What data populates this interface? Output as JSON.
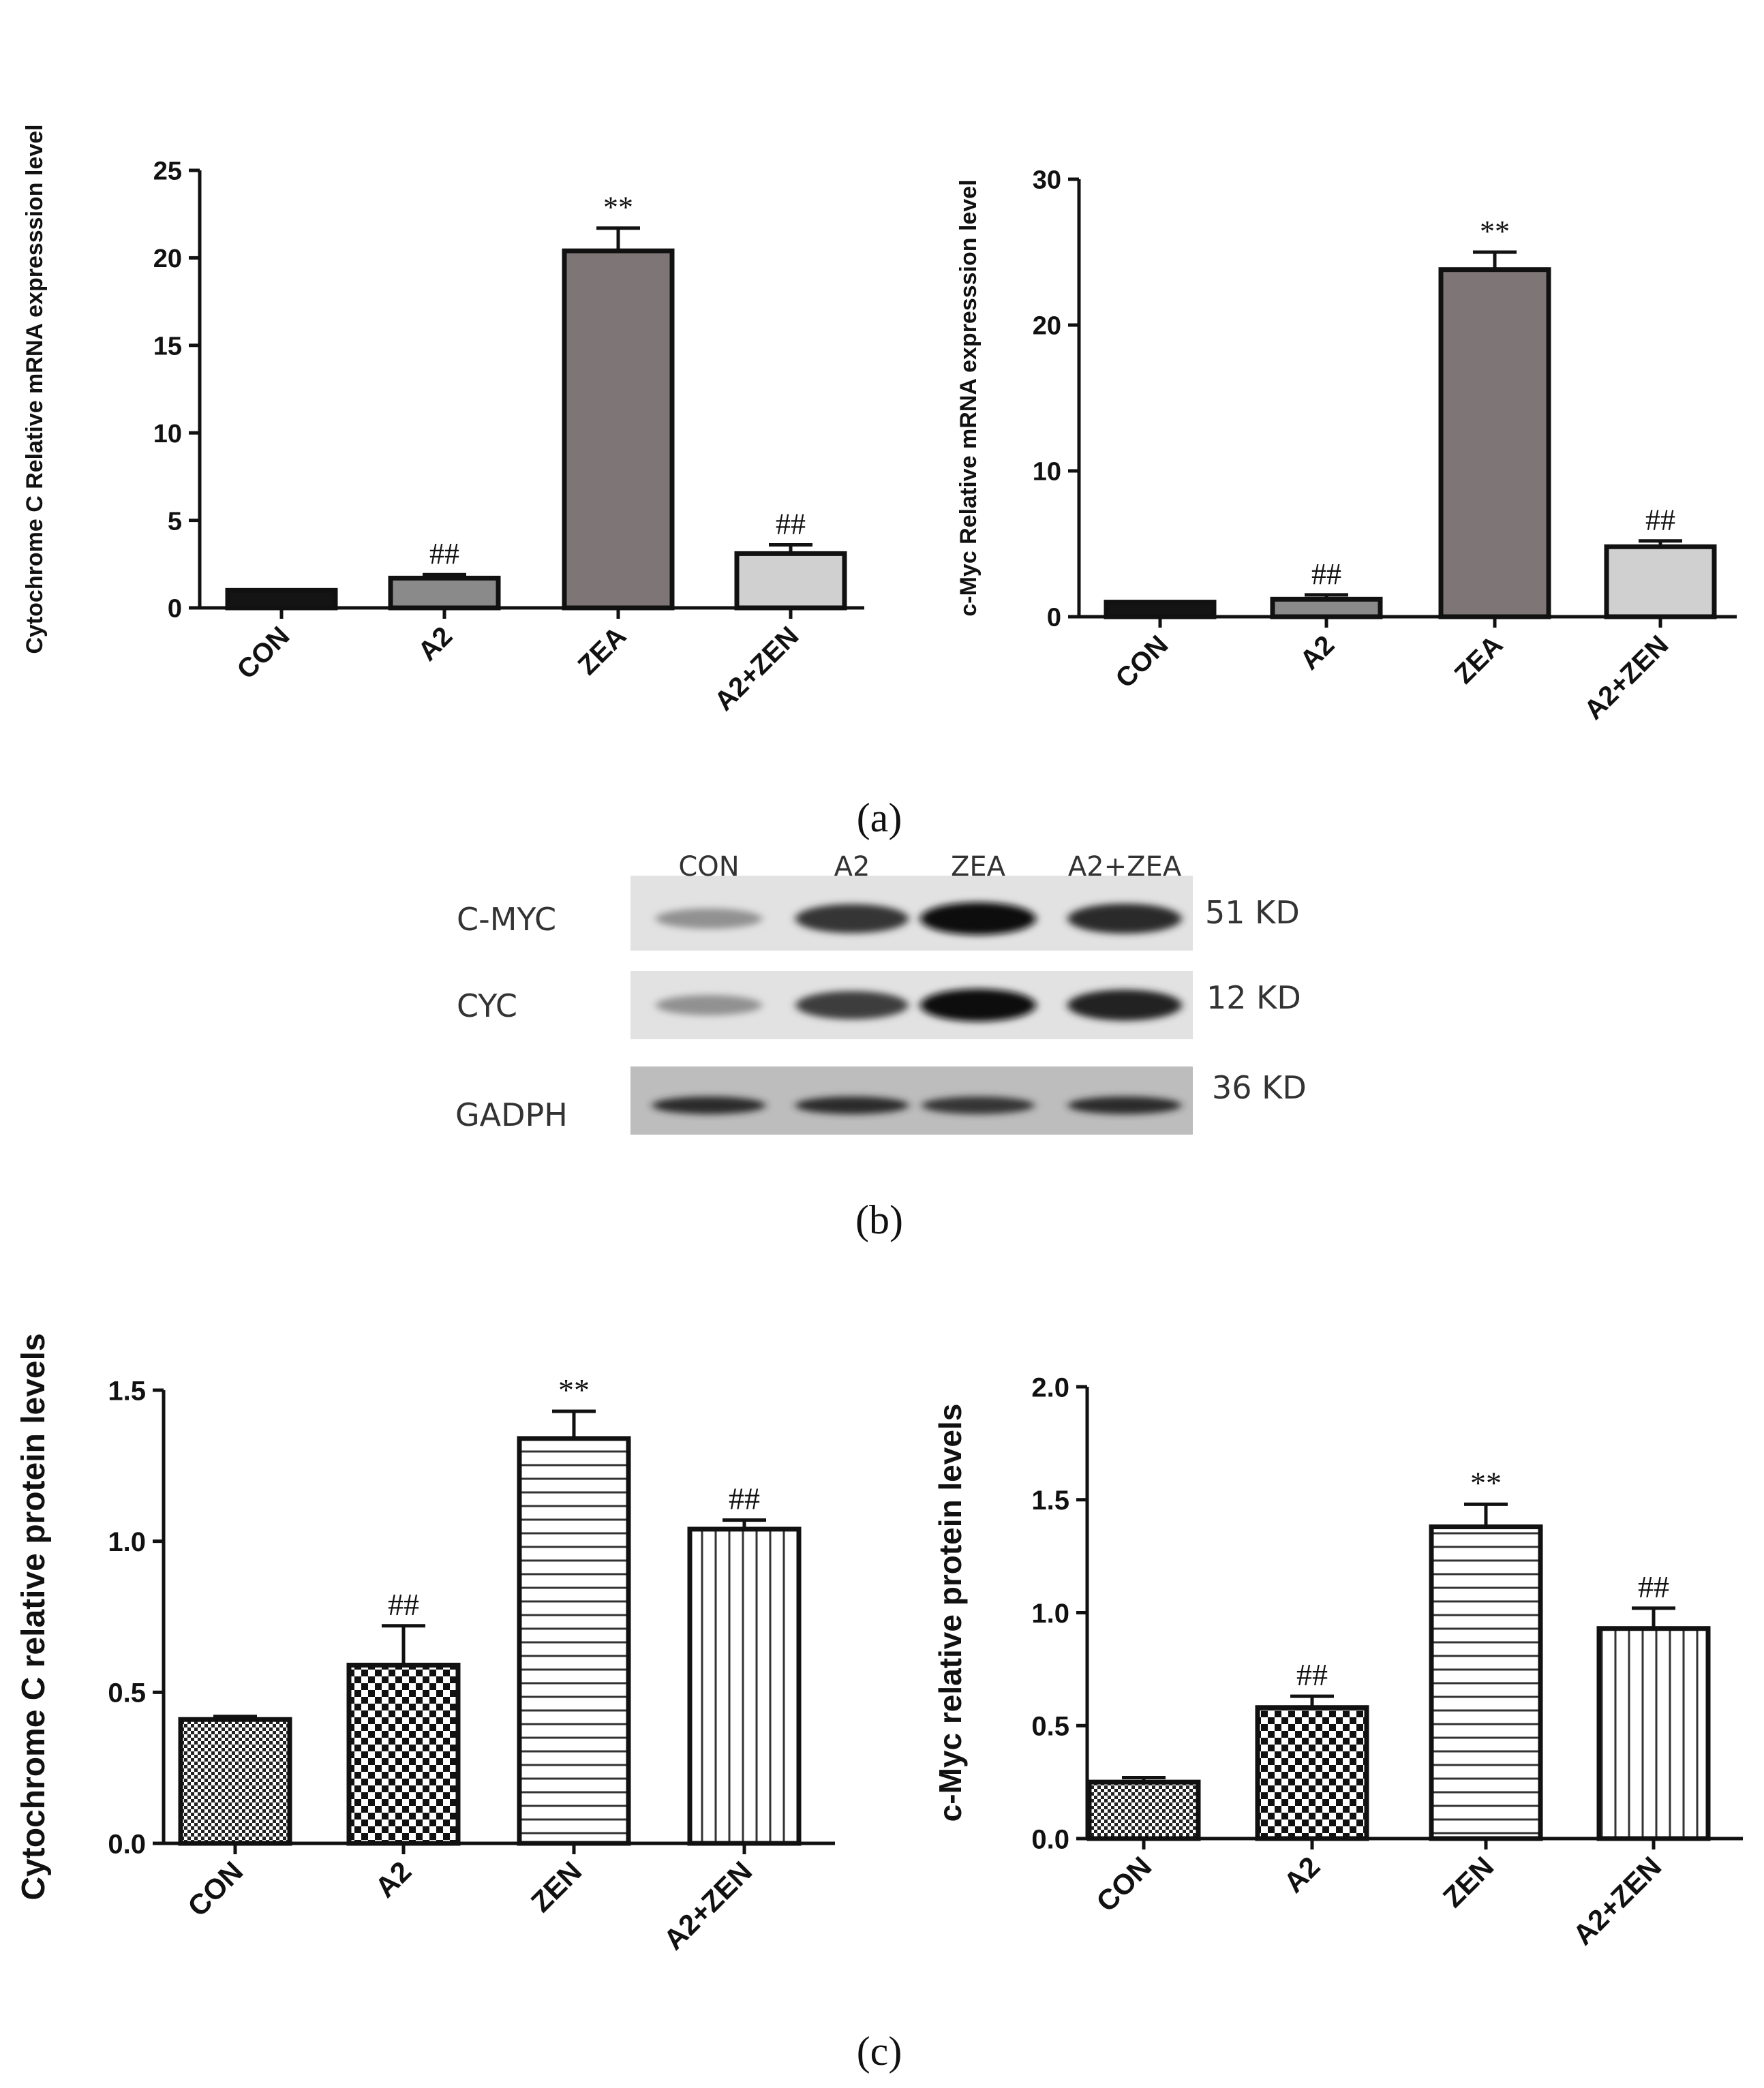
{
  "panels": {
    "a": "(a)",
    "b": "(b)",
    "c": "(c)"
  },
  "chart_data": [
    {
      "type": "bar",
      "id": "cytc-mrna",
      "title": "",
      "xlabel": "",
      "ylabel": "Cytochrome C Relative mRNA expresssion level",
      "ylim": [
        0,
        25
      ],
      "yticks": [
        0,
        5,
        10,
        15,
        20,
        25
      ],
      "categories": [
        "CON",
        "A2",
        "ZEA",
        "A2+ZEN"
      ],
      "values": [
        1.0,
        1.7,
        20.4,
        3.1
      ],
      "errors": [
        0.0,
        0.2,
        1.3,
        0.5
      ],
      "annotations": [
        "",
        "##",
        "**",
        "##"
      ],
      "fills": [
        "#141414",
        "#8a8a8a",
        "#7e7676",
        "#d0d0d0"
      ]
    },
    {
      "type": "bar",
      "id": "cmyc-mrna",
      "title": "",
      "xlabel": "",
      "ylabel": "c-Myc Relative mRNA expresssion level",
      "ylim": [
        0,
        30
      ],
      "yticks": [
        0,
        10,
        20,
        30
      ],
      "categories": [
        "CON",
        "A2",
        "ZEA",
        "A2+ZEN"
      ],
      "values": [
        1.0,
        1.2,
        23.8,
        4.8
      ],
      "errors": [
        0.0,
        0.3,
        1.2,
        0.4
      ],
      "annotations": [
        "",
        "##",
        "**",
        "##"
      ],
      "fills": [
        "#141414",
        "#8a8a8a",
        "#7e7676",
        "#d0d0d0"
      ]
    },
    {
      "type": "bar",
      "id": "cytc-protein",
      "title": "",
      "xlabel": "",
      "ylabel": "Cytochrome C relative protein levels",
      "ylim": [
        0,
        1.5
      ],
      "yticks": [
        "0.0",
        "0.5",
        "1.0",
        "1.5"
      ],
      "categories": [
        "CON",
        "A2",
        "ZEN",
        "A2+ZEN"
      ],
      "values": [
        0.41,
        0.59,
        1.34,
        1.04
      ],
      "errors": [
        0.01,
        0.13,
        0.09,
        0.03
      ],
      "annotations": [
        "",
        "##",
        "**",
        "##"
      ],
      "patterns": [
        "fine-check",
        "check",
        "hlines",
        "vlines"
      ]
    },
    {
      "type": "bar",
      "id": "cmyc-protein",
      "title": "",
      "xlabel": "",
      "ylabel": "c-Myc relative protein levels",
      "ylim": [
        0,
        2.0
      ],
      "yticks": [
        "0.0",
        "0.5",
        "1.0",
        "1.5",
        "2.0"
      ],
      "categories": [
        "CON",
        "A2",
        "ZEN",
        "A2+ZEN"
      ],
      "values": [
        0.25,
        0.58,
        1.38,
        0.93
      ],
      "errors": [
        0.02,
        0.05,
        0.1,
        0.09
      ],
      "annotations": [
        "",
        "##",
        "**",
        "##"
      ],
      "patterns": [
        "fine-check",
        "check",
        "hlines",
        "vlines"
      ]
    }
  ],
  "blot": {
    "lanes": [
      "CON",
      "A2",
      "ZEA",
      "A2+ZEA"
    ],
    "rows": [
      {
        "name": "C-MYC",
        "size": "51 KD",
        "intensity": [
          0.3,
          0.8,
          1.0,
          0.85
        ]
      },
      {
        "name": "CYC",
        "size": "12 KD",
        "intensity": [
          0.3,
          0.75,
          1.0,
          0.9
        ]
      },
      {
        "name": "GADPH",
        "size": "36 KD",
        "intensity": [
          0.85,
          0.85,
          0.8,
          0.85
        ]
      }
    ]
  }
}
